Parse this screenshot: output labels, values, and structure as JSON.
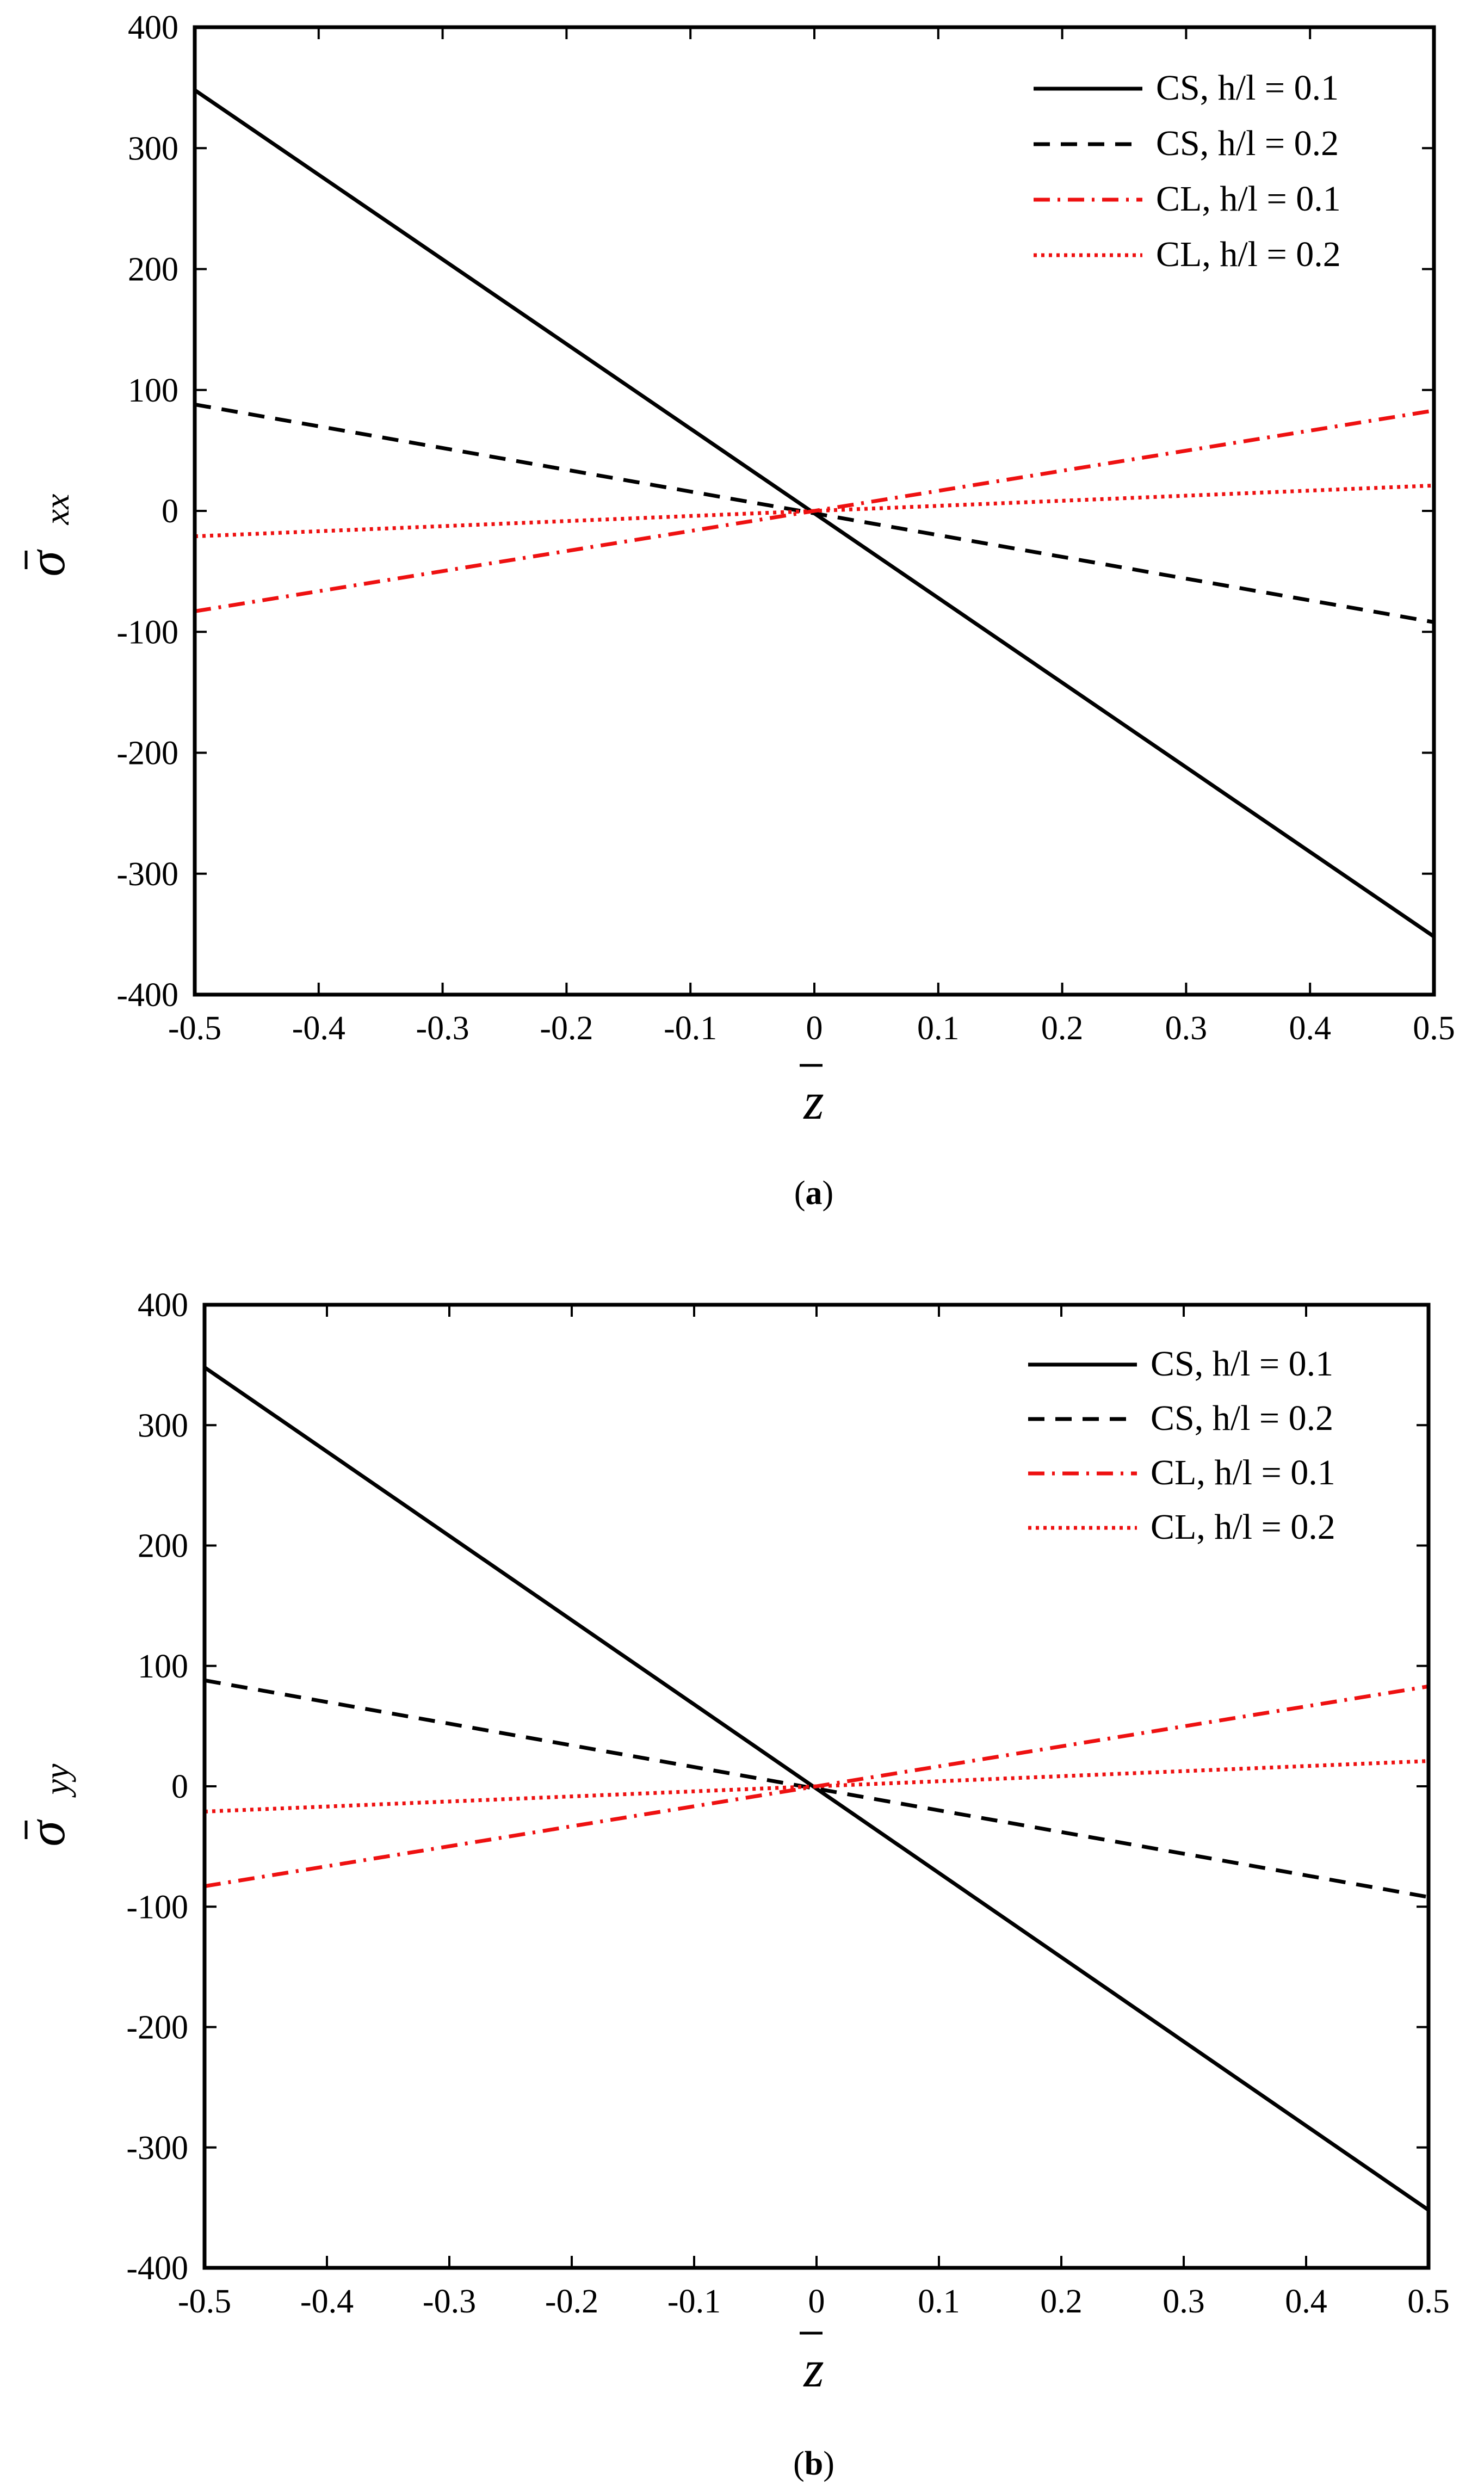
{
  "figure": {
    "panels": [
      {
        "caption_letter": "a",
        "ylabel_symbol": "σ",
        "ylabel_subscript": "xx",
        "xlabel_symbol": "z"
      },
      {
        "caption_letter": "b",
        "ylabel_symbol": "σ",
        "ylabel_subscript": "yy",
        "xlabel_symbol": "z"
      }
    ]
  },
  "chart_data": [
    {
      "type": "line",
      "title": "",
      "caption": "(a)",
      "xlabel": "z̄",
      "ylabel": "σ̄xx",
      "xlim": [
        -0.5,
        0.5
      ],
      "ylim": [
        -400,
        400
      ],
      "xticks": [
        "-0.5",
        "-0.4",
        "-0.3",
        "-0.2",
        "-0.1",
        "0",
        "0.1",
        "0.2",
        "0.3",
        "0.4",
        "0.5"
      ],
      "yticks": [
        "400",
        "300",
        "200",
        "100",
        "0",
        "-100",
        "-200",
        "-300",
        "-400"
      ],
      "legend_position": "top-right",
      "series": [
        {
          "name": "CS, h/l = 0.1",
          "color": "#000000",
          "style": "solid",
          "x": [
            -0.5,
            0.5
          ],
          "y": [
            348,
            -352
          ]
        },
        {
          "name": "CS, h/l = 0.2",
          "color": "#000000",
          "style": "dashed",
          "x": [
            -0.5,
            0.5
          ],
          "y": [
            88,
            -92
          ]
        },
        {
          "name": "CL, h/l = 0.1",
          "color": "#ee1111",
          "style": "dashdot",
          "x": [
            -0.5,
            0.5
          ],
          "y": [
            -83,
            83
          ]
        },
        {
          "name": "CL, h/l = 0.2",
          "color": "#ee1111",
          "style": "dotted",
          "x": [
            -0.5,
            0.5
          ],
          "y": [
            -21,
            21
          ]
        }
      ]
    },
    {
      "type": "line",
      "title": "",
      "caption": "(b)",
      "xlabel": "z̄",
      "ylabel": "σ̄yy",
      "xlim": [
        -0.5,
        0.5
      ],
      "ylim": [
        -400,
        400
      ],
      "xticks": [
        "-0.5",
        "-0.4",
        "-0.3",
        "-0.2",
        "-0.1",
        "0",
        "0.1",
        "0.2",
        "0.3",
        "0.4",
        "0.5"
      ],
      "yticks": [
        "400",
        "300",
        "200",
        "100",
        "0",
        "-100",
        "-200",
        "-300",
        "-400"
      ],
      "legend_position": "top-right",
      "series": [
        {
          "name": "CS, h/l = 0.1",
          "color": "#000000",
          "style": "solid",
          "x": [
            -0.5,
            0.5
          ],
          "y": [
            348,
            -352
          ]
        },
        {
          "name": "CS, h/l = 0.2",
          "color": "#000000",
          "style": "dashed",
          "x": [
            -0.5,
            0.5
          ],
          "y": [
            88,
            -92
          ]
        },
        {
          "name": "CL, h/l = 0.1",
          "color": "#ee1111",
          "style": "dashdot",
          "x": [
            -0.5,
            0.5
          ],
          "y": [
            -83,
            83
          ]
        },
        {
          "name": "CL, h/l = 0.2",
          "color": "#ee1111",
          "style": "dotted",
          "x": [
            -0.5,
            0.5
          ],
          "y": [
            -21,
            21
          ]
        }
      ]
    }
  ]
}
